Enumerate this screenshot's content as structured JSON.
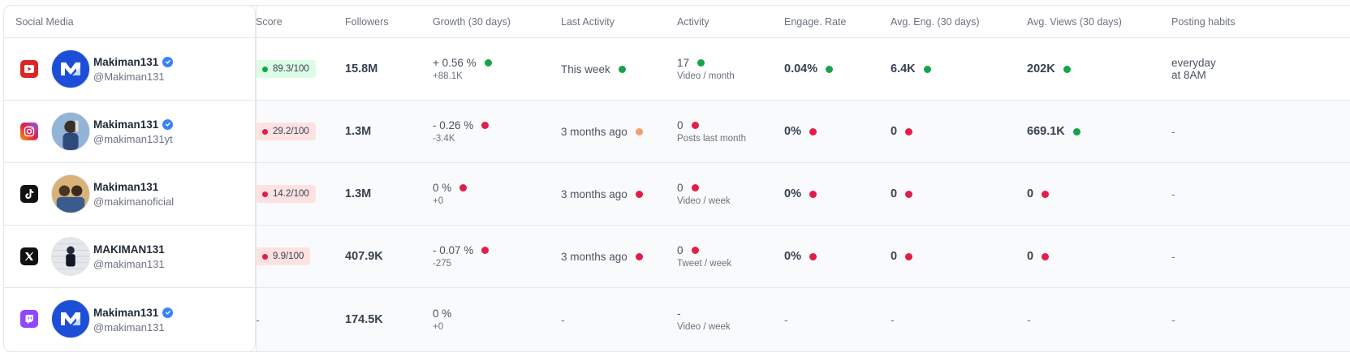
{
  "headers": {
    "social": "Social Media",
    "score": "Score",
    "followers": "Followers",
    "growth": "Growth (30 days)",
    "last_activity": "Last Activity",
    "activity": "Activity",
    "engage_rate": "Engage. Rate",
    "avg_eng": "Avg. Eng. (30 days)",
    "avg_views": "Avg. Views (30 days)",
    "posting": "Posting habits"
  },
  "colors": {
    "green": "#16a34a",
    "red": "#e11d48",
    "orange": "#f59e6b",
    "verified": "#3b82f6"
  },
  "rows": [
    {
      "platform": "youtube-icon",
      "name": "Makiman131",
      "verified": true,
      "handle": "@Makiman131",
      "score": "89.3/100",
      "score_status": "green",
      "followers": "15.8M",
      "growth": "+ 0.56 %",
      "growth_abs": "+88.1K",
      "growth_status": "green",
      "last_activity": "This week",
      "last_activity_status": "green",
      "activity": "17",
      "activity_unit": "Video / month",
      "activity_status": "green",
      "engage_rate": "0.04%",
      "engage_status": "green",
      "avg_eng": "6.4K",
      "avg_eng_status": "green",
      "avg_views": "202K",
      "avg_views_status": "green",
      "posting_line1": "everyday",
      "posting_line2": "at 8AM"
    },
    {
      "platform": "instagram-icon",
      "name": "Makiman131",
      "verified": true,
      "handle": "@makiman131yt",
      "score": "29.2/100",
      "score_status": "red",
      "followers": "1.3M",
      "growth": "- 0.26 %",
      "growth_abs": "-3.4K",
      "growth_status": "red",
      "last_activity": "3 months ago",
      "last_activity_status": "orange",
      "activity": "0",
      "activity_unit": "Posts last month",
      "activity_status": "red",
      "engage_rate": "0%",
      "engage_status": "red",
      "avg_eng": "0",
      "avg_eng_status": "red",
      "avg_views": "669.1K",
      "avg_views_status": "green",
      "posting_line1": "-",
      "posting_line2": ""
    },
    {
      "platform": "tiktok-icon",
      "name": "Makiman131",
      "verified": false,
      "handle": "@makimanoficial",
      "score": "14.2/100",
      "score_status": "red",
      "followers": "1.3M",
      "growth": "0 %",
      "growth_abs": "+0",
      "growth_status": "red",
      "last_activity": "3 months ago",
      "last_activity_status": "red",
      "activity": "0",
      "activity_unit": "Video / week",
      "activity_status": "red",
      "engage_rate": "0%",
      "engage_status": "red",
      "avg_eng": "0",
      "avg_eng_status": "red",
      "avg_views": "0",
      "avg_views_status": "red",
      "posting_line1": "-",
      "posting_line2": ""
    },
    {
      "platform": "x-icon",
      "name": "MAKIMAN131",
      "verified": false,
      "handle": "@makiman131",
      "score": "9.9/100",
      "score_status": "red",
      "followers": "407.9K",
      "growth": "- 0.07 %",
      "growth_abs": "-275",
      "growth_status": "red",
      "last_activity": "3 months ago",
      "last_activity_status": "red",
      "activity": "0",
      "activity_unit": "Tweet / week",
      "activity_status": "red",
      "engage_rate": "0%",
      "engage_status": "red",
      "avg_eng": "0",
      "avg_eng_status": "red",
      "avg_views": "0",
      "avg_views_status": "red",
      "posting_line1": "-",
      "posting_line2": ""
    },
    {
      "platform": "twitch-icon",
      "name": "Makiman131",
      "verified": true,
      "handle": "@makiman131",
      "score": "-",
      "score_status": "",
      "followers": "174.5K",
      "growth": "0 %",
      "growth_abs": "+0",
      "growth_status": "",
      "last_activity": "-",
      "last_activity_status": "",
      "activity": "-",
      "activity_unit": "Video / week",
      "activity_status": "",
      "engage_rate": "-",
      "engage_status": "",
      "avg_eng": "-",
      "avg_eng_status": "",
      "avg_views": "-",
      "avg_views_status": "",
      "posting_line1": "-",
      "posting_line2": ""
    }
  ]
}
